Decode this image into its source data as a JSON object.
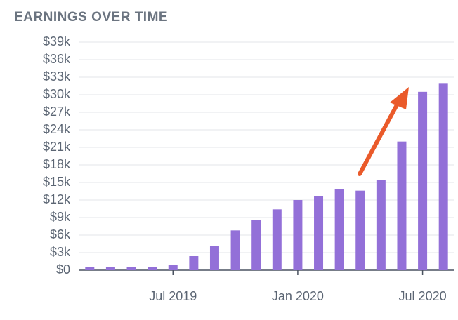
{
  "chart_data": {
    "type": "bar",
    "title": "EARNINGS OVER TIME",
    "categories": [
      null,
      null,
      null,
      null,
      "Jul 2019",
      null,
      null,
      null,
      null,
      null,
      "Jan 2020",
      null,
      null,
      null,
      null,
      null,
      "Jul 2020",
      null
    ],
    "values": [
      600,
      600,
      600,
      600,
      900,
      2400,
      4200,
      6800,
      8600,
      10400,
      12000,
      12700,
      13800,
      13600,
      15400,
      22000,
      30500,
      32000
    ],
    "color": "#9370d8",
    "ylim": [
      0,
      39000
    ],
    "yticks": [
      {
        "value": 0,
        "label": "$0"
      },
      {
        "value": 3000,
        "label": "$3k"
      },
      {
        "value": 6000,
        "label": "$6k"
      },
      {
        "value": 9000,
        "label": "$9k"
      },
      {
        "value": 12000,
        "label": "$12k"
      },
      {
        "value": 15000,
        "label": "$15k"
      },
      {
        "value": 18000,
        "label": "$18k"
      },
      {
        "value": 21000,
        "label": "$21k"
      },
      {
        "value": 24000,
        "label": "$24k"
      },
      {
        "value": 27000,
        "label": "$27k"
      },
      {
        "value": 30000,
        "label": "$30k"
      },
      {
        "value": 33000,
        "label": "$33k"
      },
      {
        "value": 36000,
        "label": "$36k"
      },
      {
        "value": 39000,
        "label": "$39k"
      }
    ],
    "grid": true
  }
}
